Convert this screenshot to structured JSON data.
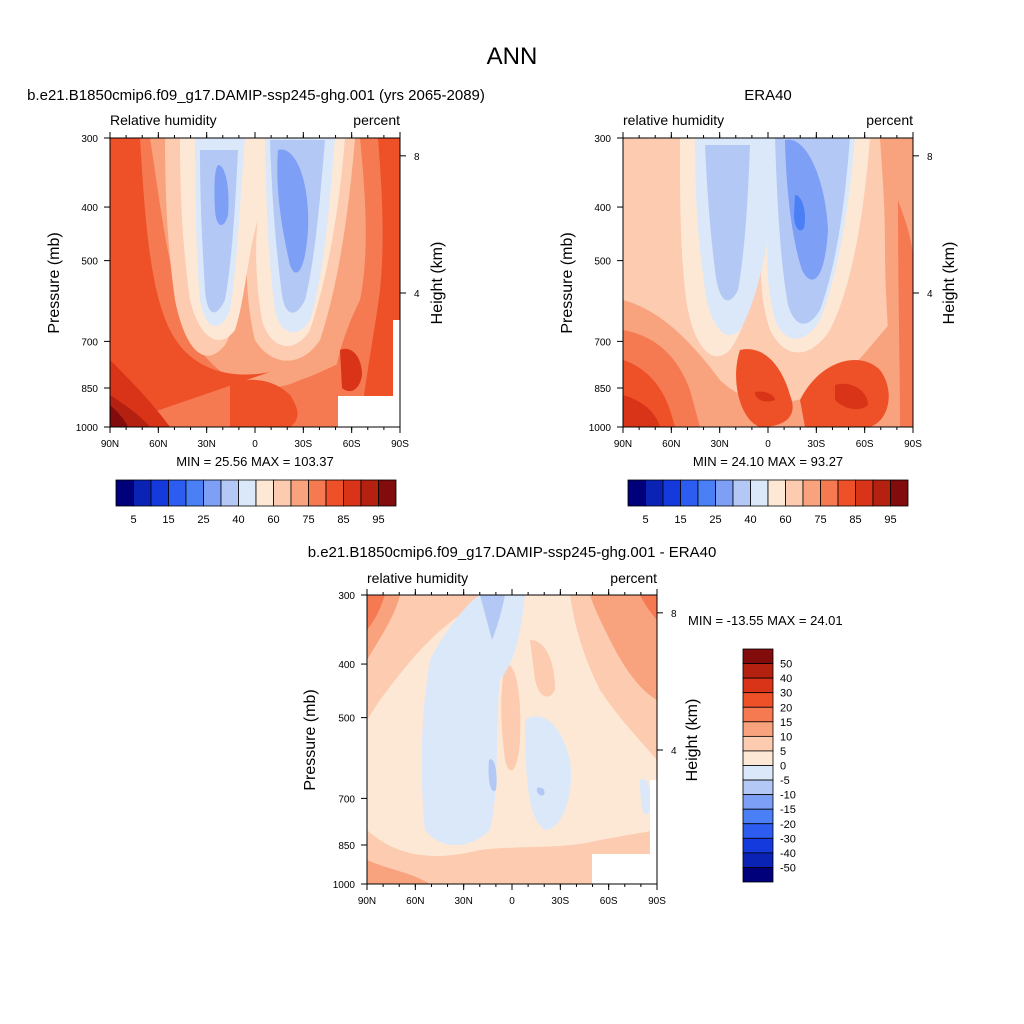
{
  "figure_title": "ANN",
  "chart_data": [
    {
      "type": "heatmap",
      "id": "model",
      "title": "b.e21.B1850cmip6.f09_g17.DAMIP-ssp245-ghg.001 (yrs 2065-2089)",
      "left_label": "Relative humidity",
      "right_label": "percent",
      "ylabel": "Pressure (mb)",
      "ylabel_right": "Height (km)",
      "pressure_levels": [
        300,
        400,
        500,
        700,
        850,
        1000
      ],
      "height_ticks": [
        8,
        4
      ],
      "lat_ticks": [
        "90N",
        "60N",
        "30N",
        "0",
        "30S",
        "60S",
        "90S"
      ],
      "stats_text": "MIN =  25.56  MAX = 103.37",
      "min": 25.56,
      "max": 103.37,
      "colorbar_labels": [
        "5",
        "15",
        "25",
        "40",
        "60",
        "75",
        "85",
        "95"
      ]
    },
    {
      "type": "heatmap",
      "id": "obs",
      "title": "ERA40",
      "left_label": "relative humidity",
      "right_label": "percent",
      "ylabel": "Pressure (mb)",
      "ylabel_right": "Height (km)",
      "pressure_levels": [
        300,
        400,
        500,
        700,
        850,
        1000
      ],
      "height_ticks": [
        8,
        4
      ],
      "lat_ticks": [
        "90N",
        "60N",
        "30N",
        "0",
        "30S",
        "60S",
        "90S"
      ],
      "stats_text": "MIN =  24.10  MAX =  93.27",
      "min": 24.1,
      "max": 93.27,
      "colorbar_labels": [
        "5",
        "15",
        "25",
        "40",
        "60",
        "75",
        "85",
        "95"
      ]
    },
    {
      "type": "heatmap",
      "id": "diff",
      "title": "b.e21.B1850cmip6.f09_g17.DAMIP-ssp245-ghg.001 - ERA40",
      "left_label": "relative humidity",
      "right_label": "percent",
      "ylabel": "Pressure (mb)",
      "ylabel_right": "Height (km)",
      "pressure_levels": [
        300,
        400,
        500,
        700,
        850,
        1000
      ],
      "height_ticks": [
        8,
        4
      ],
      "lat_ticks": [
        "90N",
        "60N",
        "30N",
        "0",
        "30S",
        "60S",
        "90S"
      ],
      "stats_text": "MIN = -13.55  MAX =  24.01",
      "min": -13.55,
      "max": 24.01,
      "colorbar_labels": [
        "50",
        "40",
        "30",
        "20",
        "15",
        "10",
        "5",
        "0",
        "-5",
        "-10",
        "-15",
        "-20",
        "-30",
        "-40",
        "-50"
      ]
    }
  ],
  "palettes": {
    "rh": [
      "#00007a",
      "#0a23b4",
      "#1439dc",
      "#2d5cf0",
      "#4a7ff5",
      "#7d9ff5",
      "#b3c8f5",
      "#dbe8fa",
      "#fde8d6",
      "#fccbb0",
      "#f9a37e",
      "#f57a52",
      "#ee5128",
      "#d93417",
      "#b42110",
      "#820c0c"
    ],
    "diff": [
      "#820c0c",
      "#b42110",
      "#d93417",
      "#ee5128",
      "#f57a52",
      "#f9a37e",
      "#fccbb0",
      "#fde8d6",
      "#dbe8fa",
      "#b3c8f5",
      "#7d9ff5",
      "#4a7ff5",
      "#2d5cf0",
      "#1439dc",
      "#0a23b4",
      "#00007a"
    ]
  }
}
